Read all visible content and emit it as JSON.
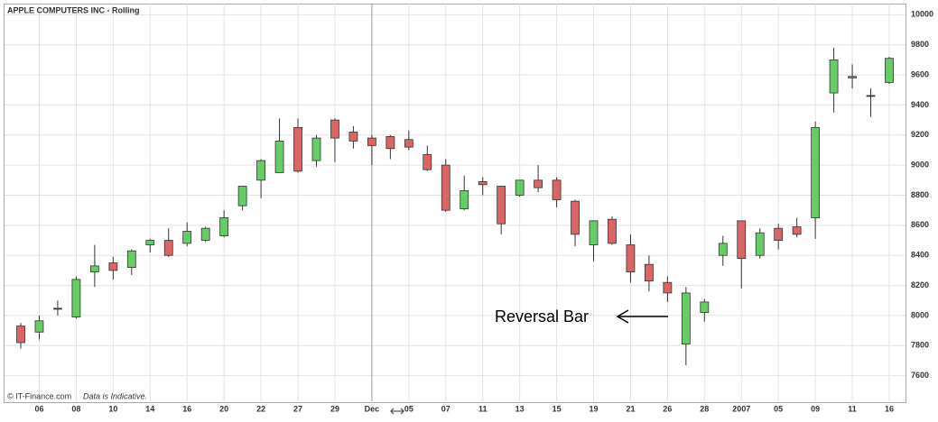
{
  "chart_data": {
    "type": "candlestick",
    "title": "APPLE COMPUTERS INC - Rolling",
    "annotation": "Reversal Bar",
    "source": "© IT-Finance.com",
    "note": "Data is Indicative.",
    "categories": [
      null,
      "06",
      null,
      "08",
      null,
      "10",
      null,
      "14",
      null,
      "16",
      null,
      "20",
      null,
      "22",
      null,
      "27",
      null,
      "29",
      null,
      "Dec",
      null,
      "05",
      null,
      "07",
      null,
      "11",
      null,
      "13",
      null,
      "15",
      null,
      "19",
      null,
      "21",
      null,
      "26",
      null,
      "28",
      null,
      "2007",
      null,
      "05",
      null,
      "09",
      null,
      "11",
      null,
      "16"
    ],
    "open": [
      7930,
      7890,
      8045,
      7990,
      8290,
      8350,
      8320,
      8470,
      8500,
      8480,
      8500,
      8530,
      8730,
      8900,
      8950,
      9250,
      9030,
      9300,
      9220,
      9180,
      9190,
      9170,
      9070,
      9000,
      8710,
      8890,
      8860,
      8800,
      8900,
      8900,
      8760,
      8470,
      8640,
      8470,
      8340,
      8220,
      7810,
      8020,
      8400,
      8630,
      8400,
      8580,
      8590,
      8650,
      9480,
      9590,
      9460,
      9550
    ],
    "high": [
      7950,
      8000,
      8100,
      8260,
      8470,
      8390,
      8440,
      8510,
      8580,
      8620,
      8590,
      8700,
      8860,
      9040,
      9310,
      9310,
      9200,
      9310,
      9260,
      9200,
      9200,
      9230,
      9130,
      9040,
      8930,
      8920,
      8860,
      8900,
      9000,
      8920,
      8770,
      8630,
      8660,
      8540,
      8400,
      8260,
      8190,
      8110,
      8530,
      8630,
      8580,
      8610,
      8650,
      9290,
      9780,
      9670,
      9510,
      9720
    ],
    "low": [
      7780,
      7840,
      8000,
      7980,
      8190,
      8240,
      8270,
      8420,
      8390,
      8460,
      8490,
      8520,
      8700,
      8780,
      8950,
      8950,
      8990,
      9020,
      9110,
      9000,
      9040,
      9100,
      8960,
      8690,
      8700,
      8800,
      8540,
      8790,
      8820,
      8720,
      8460,
      8360,
      8470,
      8220,
      8160,
      8090,
      7670,
      7960,
      8330,
      8180,
      8380,
      8440,
      8520,
      8510,
      9350,
      9510,
      9320,
      9540
    ],
    "close": [
      7820,
      7965,
      8045,
      8240,
      8330,
      8300,
      8430,
      8500,
      8400,
      8560,
      8580,
      8650,
      8860,
      9030,
      9160,
      8960,
      9180,
      9180,
      9160,
      9130,
      9110,
      9120,
      8970,
      8700,
      8830,
      8870,
      8610,
      8900,
      8850,
      8770,
      8540,
      8630,
      8480,
      8290,
      8230,
      8150,
      8150,
      8090,
      8480,
      8380,
      8550,
      8500,
      8540,
      9250,
      9700,
      9580,
      9460,
      9710
    ],
    "up_color": "#66cc66",
    "down_color": "#d96666",
    "ylim": [
      7430,
      10050
    ],
    "yticks": [
      7600,
      7800,
      8000,
      8200,
      8400,
      8600,
      8800,
      9000,
      9200,
      9400,
      9600,
      9800,
      10000
    ],
    "grid": true
  }
}
